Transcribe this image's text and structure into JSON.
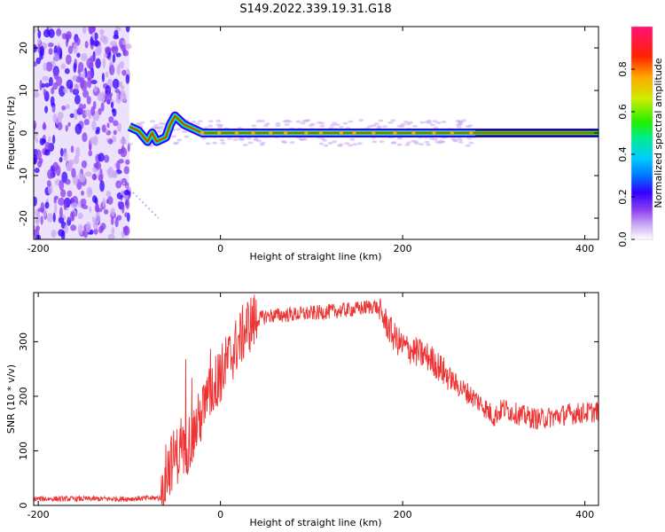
{
  "title": "S149.2022.339.19.31.G18",
  "colors": {
    "snr_line": "#ee3333",
    "colormap": [
      "#ffffff",
      "#c9a8f3",
      "#8a3ff0",
      "#3300ff",
      "#0077ff",
      "#00ccff",
      "#00ee88",
      "#22ee00",
      "#ccee00",
      "#ffaa00",
      "#ff2200",
      "#ff1177"
    ]
  },
  "chart_data": [
    {
      "type": "heatmap",
      "title": "S149.2022.339.19.31.G18",
      "xlabel": "Height of straight line (km)",
      "ylabel": "Frequency (Hz)",
      "xlim": [
        -205,
        415
      ],
      "ylim": [
        -25,
        25
      ],
      "xticks": [
        "-200",
        "0",
        "200",
        "400"
      ],
      "yticks": [
        "-20",
        "-10",
        "0",
        "10",
        "20"
      ],
      "colorbar": {
        "label": "Normalized spectral amplitude",
        "range": [
          0,
          1
        ],
        "ticks": [
          "0.0",
          "0.2",
          "0.4",
          "0.6",
          "0.8"
        ]
      },
      "features": {
        "noise_region_x": [
          -205,
          -100
        ],
        "signal_ridge": [
          [
            -100,
            1.5
          ],
          [
            -90,
            0.5
          ],
          [
            -80,
            -2
          ],
          [
            -75,
            0
          ],
          [
            -70,
            -2
          ],
          [
            -60,
            -1
          ],
          [
            -55,
            2
          ],
          [
            -50,
            4
          ],
          [
            -40,
            2
          ],
          [
            -30,
            1
          ],
          [
            -20,
            0
          ],
          [
            0,
            0
          ],
          [
            100,
            0
          ],
          [
            200,
            0
          ],
          [
            300,
            0
          ],
          [
            415,
            0
          ]
        ],
        "ridge_band_end_x": 280,
        "diagonal_streak": [
          [
            -110,
            -11
          ],
          [
            -68,
            -20
          ]
        ]
      }
    },
    {
      "type": "line",
      "xlabel": "Height of straight line (km)",
      "ylabel": "SNR (10 * v/v)",
      "xlim": [
        -205,
        415
      ],
      "ylim": [
        0,
        390
      ],
      "xticks": [
        "-200",
        "0",
        "200",
        "400"
      ],
      "yticks": [
        "0",
        "100",
        "200",
        "300"
      ],
      "series": [
        {
          "x": [
            -205,
            -150,
            -100,
            -65,
            -60,
            -50,
            -40,
            -30,
            -20,
            -10,
            0,
            10,
            20,
            30,
            40,
            50,
            100,
            150,
            170,
            180,
            190,
            200,
            230,
            260,
            280,
            290,
            300,
            310,
            330,
            350,
            380,
            415
          ],
          "values": [
            12,
            12,
            12,
            14,
            60,
            90,
            100,
            130,
            170,
            210,
            240,
            270,
            300,
            330,
            340,
            347,
            352,
            360,
            366,
            340,
            310,
            292,
            270,
            220,
            195,
            180,
            162,
            178,
            165,
            158,
            167,
            172
          ]
        }
      ]
    }
  ]
}
